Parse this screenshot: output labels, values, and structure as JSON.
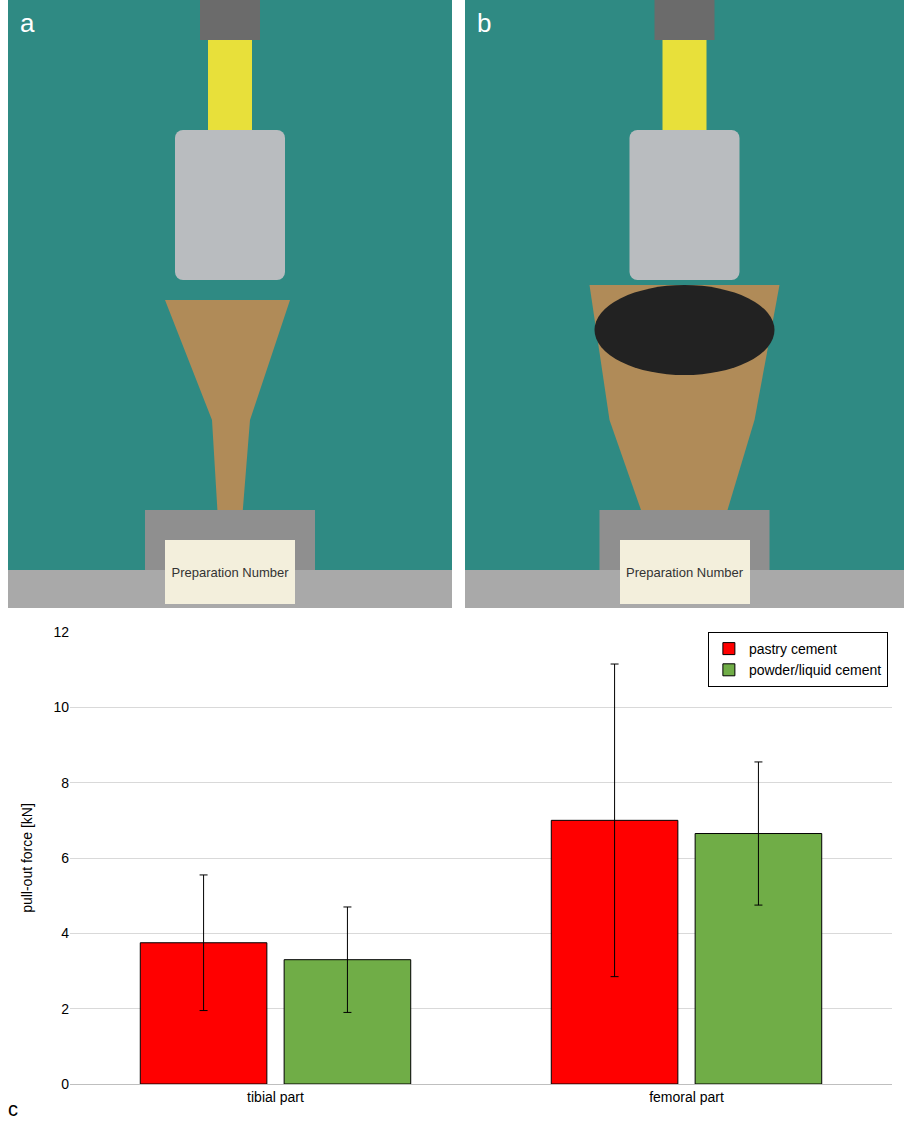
{
  "panels": [
    {
      "letter": "a",
      "note": "Preparation Number"
    },
    {
      "letter": "b",
      "note": "Preparation Number"
    }
  ],
  "chart_label": "c",
  "chart_data": {
    "type": "bar",
    "categories": [
      "tibial part",
      "femoral part"
    ],
    "series": [
      {
        "name": "pastry cement",
        "color": "#ff0000",
        "values": [
          3.75,
          7.0
        ],
        "errors": [
          1.8,
          4.15
        ]
      },
      {
        "name": "powder/liquid cement",
        "color": "#70ad47",
        "values": [
          3.3,
          6.65
        ],
        "errors": [
          1.4,
          1.9
        ]
      }
    ],
    "y_label": "pull-out force [kN]",
    "ylim": [
      0,
      12
    ],
    "yticks": [
      0,
      2,
      4,
      6,
      8,
      10,
      12
    ],
    "grid": true,
    "legend": "top right"
  }
}
